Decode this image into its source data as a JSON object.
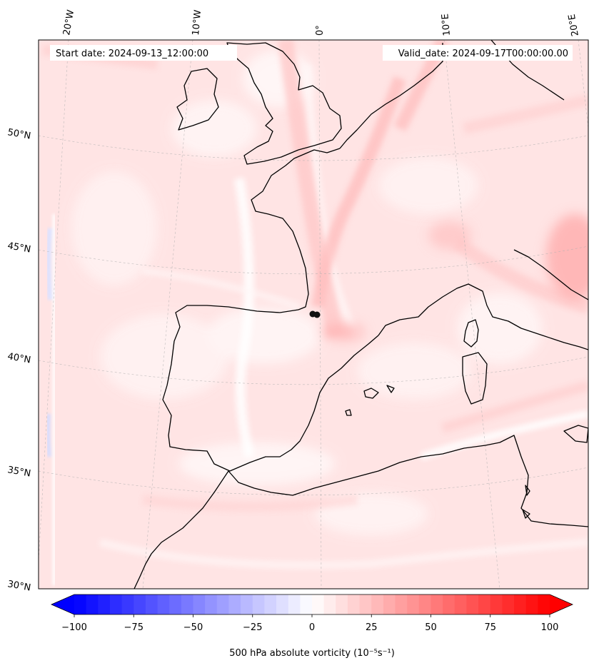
{
  "header": {
    "start_date": "Start date: 2024-09-13_12:00:00",
    "valid_date": "Valid_date: 2024-09-17T00:00:00.00"
  },
  "map": {
    "projection": "conic (Lambert-like), Western Europe / Iberia",
    "longitude_labels": [
      "20°W",
      "10°W",
      "0°",
      "10°E",
      "20°E"
    ],
    "latitude_labels": [
      "50°N",
      "45°N",
      "40°N",
      "35°N",
      "30°N"
    ],
    "gridlines": true,
    "field": "500 hPa absolute vorticity",
    "marker": {
      "description": "black dot over south-west France"
    }
  },
  "colorbar": {
    "label": "500 hPa absolute vorticity (10⁻⁵s⁻¹)",
    "min": -100,
    "max": 100,
    "ticks": [
      "−100",
      "−75",
      "−50",
      "−25",
      "0",
      "25",
      "50",
      "75",
      "100"
    ],
    "extend": "both",
    "colormap": "bwr",
    "low_color": "#0000ff",
    "mid_color": "#ffffff",
    "high_color": "#ff0000"
  },
  "colors": {
    "background_field": "#ffe6e6",
    "coastline": "#000000"
  }
}
